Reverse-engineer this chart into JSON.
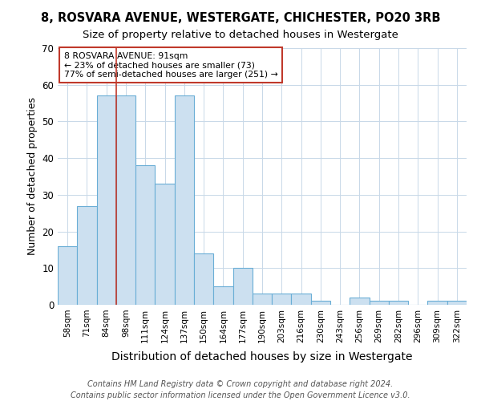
{
  "title1": "8, ROSVARA AVENUE, WESTERGATE, CHICHESTER, PO20 3RB",
  "title2": "Size of property relative to detached houses in Westergate",
  "xlabel": "Distribution of detached houses by size in Westergate",
  "ylabel": "Number of detached properties",
  "categories": [
    "58sqm",
    "71sqm",
    "84sqm",
    "98sqm",
    "111sqm",
    "124sqm",
    "137sqm",
    "150sqm",
    "164sqm",
    "177sqm",
    "190sqm",
    "203sqm",
    "216sqm",
    "230sqm",
    "243sqm",
    "256sqm",
    "269sqm",
    "282sqm",
    "296sqm",
    "309sqm",
    "322sqm"
  ],
  "values": [
    16,
    27,
    57,
    57,
    38,
    33,
    57,
    14,
    5,
    10,
    3,
    3,
    3,
    1,
    0,
    2,
    1,
    1,
    0,
    1,
    1
  ],
  "bar_color": "#cce0f0",
  "bar_edge_color": "#6aaed6",
  "vline_x_index": 2.5,
  "vline_color": "#c0392b",
  "annotation_text": "8 ROSVARA AVENUE: 91sqm\n← 23% of detached houses are smaller (73)\n77% of semi-detached houses are larger (251) →",
  "annotation_box_color": "#ffffff",
  "annotation_box_edge": "#c0392b",
  "ylim": [
    0,
    70
  ],
  "yticks": [
    0,
    10,
    20,
    30,
    40,
    50,
    60,
    70
  ],
  "footer1": "Contains HM Land Registry data © Crown copyright and database right 2024.",
  "footer2": "Contains public sector information licensed under the Open Government Licence v3.0.",
  "bg_color": "#ffffff",
  "grid_color": "#c8d8e8",
  "title1_fontsize": 10.5,
  "title2_fontsize": 9.5,
  "xlabel_fontsize": 10,
  "ylabel_fontsize": 9,
  "tick_fontsize": 7.5,
  "footer_fontsize": 7.0,
  "annot_fontsize": 7.8
}
